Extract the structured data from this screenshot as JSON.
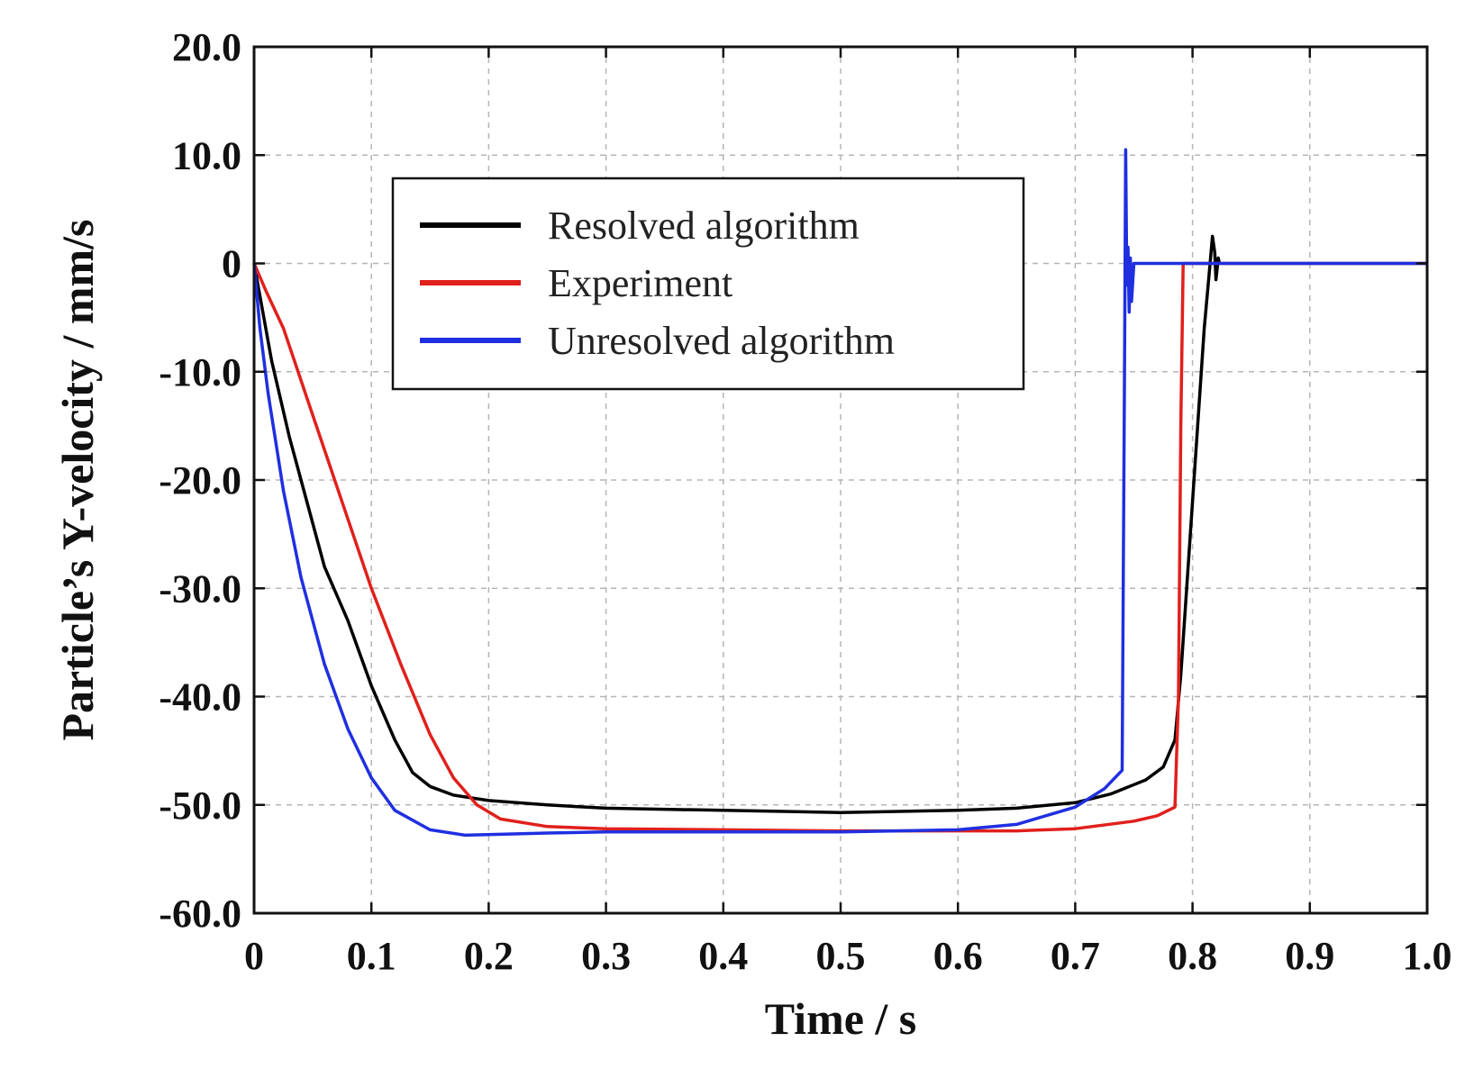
{
  "chart_data": {
    "type": "line",
    "xlabel": "Time / s",
    "ylabel": "Particle’s Y-velocity / mm/s",
    "xlim": [
      0,
      1.0
    ],
    "ylim": [
      -60,
      20
    ],
    "grid": true,
    "legend_position": "top-center",
    "x_ticks": [
      "0",
      "0.1",
      "0.2",
      "0.3",
      "0.4",
      "0.5",
      "0.6",
      "0.7",
      "0.8",
      "0.9",
      "1.0"
    ],
    "y_ticks": [
      "20.0",
      "10.0",
      "0",
      "-10.0",
      "-20.0",
      "-30.0",
      "-40.0",
      "-50.0",
      "-60.0"
    ],
    "series": [
      {
        "name": "Resolved algorithm",
        "color": "#000000",
        "points": [
          [
            0,
            0
          ],
          [
            0.005,
            -3
          ],
          [
            0.015,
            -9
          ],
          [
            0.03,
            -16
          ],
          [
            0.045,
            -22
          ],
          [
            0.06,
            -28
          ],
          [
            0.08,
            -33
          ],
          [
            0.1,
            -39
          ],
          [
            0.12,
            -44
          ],
          [
            0.135,
            -47
          ],
          [
            0.15,
            -48.3
          ],
          [
            0.17,
            -49.1
          ],
          [
            0.2,
            -49.6
          ],
          [
            0.25,
            -50.0
          ],
          [
            0.3,
            -50.3
          ],
          [
            0.4,
            -50.5
          ],
          [
            0.5,
            -50.7
          ],
          [
            0.6,
            -50.5
          ],
          [
            0.65,
            -50.3
          ],
          [
            0.7,
            -49.8
          ],
          [
            0.73,
            -49.0
          ],
          [
            0.76,
            -47.7
          ],
          [
            0.775,
            -46.5
          ],
          [
            0.785,
            -44.0
          ],
          [
            0.79,
            -38
          ],
          [
            0.8,
            -22
          ],
          [
            0.81,
            -6
          ],
          [
            0.815,
            0
          ],
          [
            0.817,
            2.5
          ],
          [
            0.819,
            1.0
          ],
          [
            0.82,
            -1.5
          ],
          [
            0.822,
            0.5
          ],
          [
            0.823,
            0
          ]
        ]
      },
      {
        "name": "Experiment",
        "color": "#e0201c",
        "points": [
          [
            0,
            0
          ],
          [
            0.01,
            -2.5
          ],
          [
            0.025,
            -6
          ],
          [
            0.05,
            -14
          ],
          [
            0.075,
            -22
          ],
          [
            0.1,
            -30
          ],
          [
            0.125,
            -37
          ],
          [
            0.15,
            -43.5
          ],
          [
            0.17,
            -47.5
          ],
          [
            0.19,
            -50.0
          ],
          [
            0.21,
            -51.3
          ],
          [
            0.25,
            -52.0
          ],
          [
            0.3,
            -52.2
          ],
          [
            0.4,
            -52.3
          ],
          [
            0.5,
            -52.4
          ],
          [
            0.6,
            -52.4
          ],
          [
            0.65,
            -52.4
          ],
          [
            0.7,
            -52.2
          ],
          [
            0.75,
            -51.5
          ],
          [
            0.77,
            -51.0
          ],
          [
            0.785,
            -50.2
          ],
          [
            0.788,
            -40
          ],
          [
            0.79,
            -15
          ],
          [
            0.792,
            0
          ],
          [
            1.0,
            0
          ]
        ]
      },
      {
        "name": "Unresolved algorithm",
        "color": "#1f2fe0",
        "points": [
          [
            0,
            0
          ],
          [
            0.005,
            -6
          ],
          [
            0.012,
            -12
          ],
          [
            0.025,
            -21
          ],
          [
            0.04,
            -29
          ],
          [
            0.06,
            -37
          ],
          [
            0.08,
            -43
          ],
          [
            0.1,
            -47.5
          ],
          [
            0.12,
            -50.5
          ],
          [
            0.15,
            -52.3
          ],
          [
            0.18,
            -52.8
          ],
          [
            0.25,
            -52.6
          ],
          [
            0.3,
            -52.5
          ],
          [
            0.4,
            -52.5
          ],
          [
            0.5,
            -52.5
          ],
          [
            0.6,
            -52.3
          ],
          [
            0.65,
            -51.8
          ],
          [
            0.7,
            -50.2
          ],
          [
            0.725,
            -48.5
          ],
          [
            0.74,
            -46.8
          ],
          [
            0.742,
            -10
          ],
          [
            0.743,
            10.5
          ],
          [
            0.744,
            -2
          ],
          [
            0.745,
            1.5
          ],
          [
            0.746,
            -4.5
          ],
          [
            0.747,
            0.5
          ],
          [
            0.748,
            -3.5
          ],
          [
            0.75,
            0
          ],
          [
            1.0,
            0
          ]
        ]
      }
    ]
  }
}
